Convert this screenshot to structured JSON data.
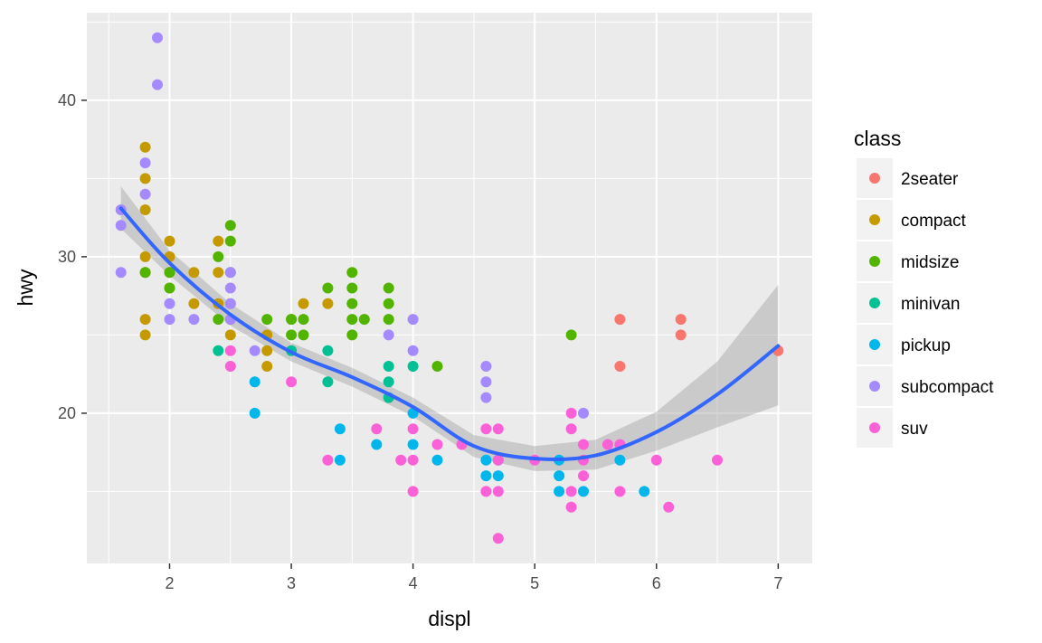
{
  "chart_data": {
    "type": "scatter",
    "xlabel": "displ",
    "ylabel": "hwy",
    "xlim": [
      1.32,
      7.28
    ],
    "ylim": [
      10.4,
      45.6
    ],
    "xticks": [
      "2",
      "3",
      "4",
      "5",
      "6",
      "7"
    ],
    "yticks": [
      "20",
      "30",
      "40"
    ],
    "grid": true,
    "legend": {
      "title": "class",
      "placement": "right",
      "entries": [
        "2seater",
        "compact",
        "midsize",
        "minivan",
        "pickup",
        "subcompact",
        "suv"
      ]
    },
    "colors": {
      "2seater": "#F8766D",
      "compact": "#C49A00",
      "midsize": "#53B400",
      "minivan": "#00C094",
      "pickup": "#00B6EB",
      "subcompact": "#A58AFF",
      "suv": "#FB61D7",
      "smooth_line": "#3366FF",
      "ribbon": "#999999",
      "panel": "#EBEBEB"
    },
    "series": [
      {
        "name": "2seater",
        "points": [
          [
            5.7,
            26
          ],
          [
            5.7,
            23
          ],
          [
            6.2,
            26
          ],
          [
            6.2,
            25
          ],
          [
            7.0,
            24
          ]
        ]
      },
      {
        "name": "compact",
        "points": [
          [
            1.8,
            37
          ],
          [
            1.8,
            35
          ],
          [
            1.8,
            33
          ],
          [
            1.8,
            30
          ],
          [
            1.8,
            29
          ],
          [
            1.8,
            26
          ],
          [
            1.8,
            25
          ],
          [
            2.0,
            31
          ],
          [
            2.0,
            30
          ],
          [
            2.0,
            29
          ],
          [
            2.0,
            28
          ],
          [
            2.2,
            29
          ],
          [
            2.2,
            27
          ],
          [
            2.4,
            31
          ],
          [
            2.4,
            29
          ],
          [
            2.4,
            27
          ],
          [
            2.5,
            27
          ],
          [
            2.5,
            26
          ],
          [
            2.5,
            25
          ],
          [
            2.8,
            25
          ],
          [
            2.8,
            24
          ],
          [
            2.8,
            23
          ],
          [
            3.0,
            26
          ],
          [
            3.1,
            27
          ],
          [
            3.3,
            27
          ]
        ]
      },
      {
        "name": "midsize",
        "points": [
          [
            1.8,
            29
          ],
          [
            2.0,
            29
          ],
          [
            2.0,
            28
          ],
          [
            2.4,
            30
          ],
          [
            2.4,
            26
          ],
          [
            2.5,
            32
          ],
          [
            2.5,
            31
          ],
          [
            2.5,
            29
          ],
          [
            2.8,
            26
          ],
          [
            3.0,
            26
          ],
          [
            3.0,
            25
          ],
          [
            3.1,
            26
          ],
          [
            3.1,
            25
          ],
          [
            3.3,
            28
          ],
          [
            3.5,
            29
          ],
          [
            3.5,
            28
          ],
          [
            3.5,
            27
          ],
          [
            3.5,
            26
          ],
          [
            3.5,
            25
          ],
          [
            3.6,
            26
          ],
          [
            3.8,
            28
          ],
          [
            3.8,
            27
          ],
          [
            3.8,
            26
          ],
          [
            4.2,
            23
          ],
          [
            5.3,
            25
          ]
        ]
      },
      {
        "name": "minivan",
        "points": [
          [
            2.4,
            24
          ],
          [
            3.0,
            24
          ],
          [
            3.3,
            24
          ],
          [
            3.3,
            22
          ],
          [
            3.8,
            23
          ],
          [
            3.8,
            22
          ],
          [
            3.8,
            21
          ],
          [
            4.0,
            23
          ]
        ]
      },
      {
        "name": "pickup",
        "points": [
          [
            2.7,
            22
          ],
          [
            2.7,
            20
          ],
          [
            3.4,
            19
          ],
          [
            3.4,
            17
          ],
          [
            3.7,
            18
          ],
          [
            4.0,
            20
          ],
          [
            4.0,
            18
          ],
          [
            4.2,
            17
          ],
          [
            4.6,
            17
          ],
          [
            4.6,
            16
          ],
          [
            4.7,
            17
          ],
          [
            4.7,
            16
          ],
          [
            5.2,
            17
          ],
          [
            5.2,
            16
          ],
          [
            5.2,
            15
          ],
          [
            5.4,
            15
          ],
          [
            5.7,
            17
          ],
          [
            5.9,
            15
          ]
        ]
      },
      {
        "name": "subcompact",
        "points": [
          [
            1.6,
            33
          ],
          [
            1.6,
            32
          ],
          [
            1.6,
            29
          ],
          [
            1.8,
            36
          ],
          [
            1.8,
            34
          ],
          [
            1.9,
            44
          ],
          [
            1.9,
            41
          ],
          [
            2.0,
            27
          ],
          [
            2.0,
            26
          ],
          [
            2.2,
            26
          ],
          [
            2.5,
            29
          ],
          [
            2.5,
            28
          ],
          [
            2.5,
            27
          ],
          [
            2.5,
            26
          ],
          [
            2.7,
            24
          ],
          [
            3.8,
            25
          ],
          [
            4.0,
            26
          ],
          [
            4.0,
            24
          ],
          [
            4.6,
            23
          ],
          [
            4.6,
            22
          ],
          [
            4.6,
            21
          ],
          [
            5.4,
            20
          ]
        ]
      },
      {
        "name": "suv",
        "points": [
          [
            2.5,
            24
          ],
          [
            2.5,
            23
          ],
          [
            3.0,
            22
          ],
          [
            3.3,
            17
          ],
          [
            3.7,
            19
          ],
          [
            3.9,
            17
          ],
          [
            4.0,
            19
          ],
          [
            4.0,
            17
          ],
          [
            4.0,
            15
          ],
          [
            4.2,
            18
          ],
          [
            4.4,
            18
          ],
          [
            4.6,
            19
          ],
          [
            4.6,
            15
          ],
          [
            4.7,
            19
          ],
          [
            4.7,
            17
          ],
          [
            4.7,
            15
          ],
          [
            4.7,
            12
          ],
          [
            5.0,
            17
          ],
          [
            5.3,
            20
          ],
          [
            5.3,
            19
          ],
          [
            5.3,
            15
          ],
          [
            5.3,
            14
          ],
          [
            5.4,
            18
          ],
          [
            5.4,
            17
          ],
          [
            5.4,
            16
          ],
          [
            5.6,
            18
          ],
          [
            5.7,
            18
          ],
          [
            5.7,
            15
          ],
          [
            6.0,
            17
          ],
          [
            6.1,
            14
          ],
          [
            6.5,
            17
          ]
        ]
      }
    ],
    "smooth": {
      "method": "loess",
      "x": [
        1.6,
        2.0,
        2.5,
        3.0,
        3.5,
        4.0,
        4.5,
        5.0,
        5.5,
        6.0,
        6.5,
        7.0
      ],
      "y": [
        33.1,
        29.6,
        26.3,
        23.9,
        22.3,
        20.4,
        17.9,
        17.1,
        17.3,
        18.8,
        21.2,
        24.3
      ],
      "ymin": [
        31.8,
        28.8,
        25.6,
        23.3,
        21.7,
        19.8,
        17.2,
        16.3,
        16.4,
        17.6,
        19.1,
        20.5
      ],
      "ymax": [
        34.5,
        30.4,
        27.0,
        24.5,
        22.9,
        21.0,
        18.6,
        17.9,
        18.3,
        20.1,
        23.3,
        28.2
      ]
    }
  }
}
